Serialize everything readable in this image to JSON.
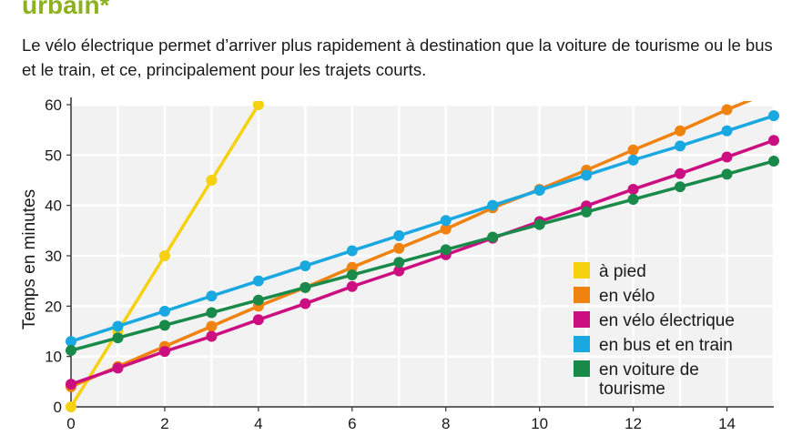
{
  "title": "urbain*",
  "subtitle": "Le vélo électrique permet d’arriver plus rapidement à destination que la voiture de tourisme ou le bus et le train, et ce, principalement pour les trajets courts.",
  "chart_data": {
    "type": "line",
    "title": "urbain*",
    "xlabel": "",
    "ylabel": "Temps en minutes",
    "xlim": [
      0,
      15
    ],
    "ylim": [
      0,
      60
    ],
    "x_ticks": [
      "0",
      "2",
      "4",
      "6",
      "8",
      "10",
      "12",
      "14"
    ],
    "y_ticks": [
      "0",
      "10",
      "20",
      "30",
      "40",
      "50",
      "60"
    ],
    "grid": true,
    "legend_position": "bottom-right",
    "series": [
      {
        "name": "à pied",
        "color": "#f5d10f",
        "x": [
          0,
          1,
          2,
          3,
          4
        ],
        "y": [
          0,
          15,
          30,
          45,
          60
        ]
      },
      {
        "name": "en vélo",
        "color": "#f0820f",
        "x": [
          0,
          1,
          2,
          3,
          4,
          5,
          6,
          7,
          8,
          9,
          10,
          11,
          12,
          13,
          14,
          15
        ],
        "y": [
          4,
          8,
          12,
          16,
          20,
          23.7,
          27.7,
          31.5,
          35.3,
          39.5,
          43.2,
          47,
          51,
          54.8,
          59,
          62.8
        ]
      },
      {
        "name": "en vélo électrique",
        "color": "#cc0f80",
        "x": [
          0,
          1,
          2,
          3,
          4,
          5,
          6,
          7,
          8,
          9,
          10,
          11,
          12,
          13,
          14,
          15
        ],
        "y": [
          4.5,
          7.7,
          11,
          14,
          17.3,
          20.5,
          23.9,
          27,
          30.2,
          33.5,
          36.8,
          39.9,
          43.2,
          46.3,
          49.6,
          52.9
        ]
      },
      {
        "name": "en bus et en train",
        "color": "#1aa8e0",
        "x": [
          0,
          1,
          2,
          3,
          4,
          5,
          6,
          7,
          8,
          9,
          10,
          11,
          12,
          13,
          14,
          15
        ],
        "y": [
          13,
          16,
          19,
          22,
          25,
          28,
          31,
          34,
          37,
          40,
          43,
          46,
          49,
          51.8,
          54.8,
          57.8
        ]
      },
      {
        "name": "en voiture de tourisme",
        "name_lines": [
          "en voiture de",
          "tourisme"
        ],
        "color": "#1a8a4a",
        "x": [
          0,
          1,
          2,
          3,
          4,
          5,
          6,
          7,
          8,
          9,
          10,
          11,
          12,
          13,
          14,
          15
        ],
        "y": [
          11.2,
          13.7,
          16.2,
          18.7,
          21.2,
          23.7,
          26.2,
          28.7,
          31.2,
          33.7,
          36.2,
          38.7,
          41.2,
          43.7,
          46.2,
          48.8
        ]
      }
    ]
  }
}
